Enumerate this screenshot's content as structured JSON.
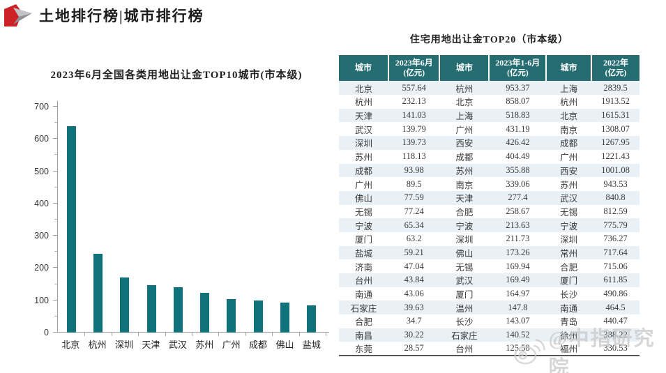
{
  "header": {
    "title": "土地排行榜|城市排行榜"
  },
  "colors": {
    "bar_teal": "#10737c",
    "table_header_teal": "#256d71",
    "row_stripe": "#e9f0f6",
    "logo_red": "#cc2127",
    "logo_gray_light": "#c3c3c6",
    "logo_gray_dark": "#8f9094",
    "watermark_gray": "#c9c9c9",
    "table_bottom_line": "#555555"
  },
  "chart_data": {
    "type": "bar",
    "title": "2023年6月全国各类用地出让金TOP10城市(市本级)",
    "categories": [
      "北京",
      "杭州",
      "深圳",
      "天津",
      "武汉",
      "苏州",
      "广州",
      "成都",
      "佛山",
      "盐城"
    ],
    "values": [
      640,
      245,
      171,
      147,
      141,
      123,
      104,
      99,
      93,
      85
    ],
    "xlabel": "",
    "ylabel": "",
    "ylim": [
      0,
      700
    ],
    "yticks": [
      0,
      100,
      200,
      300,
      400,
      500,
      600,
      700
    ],
    "ytick_minor_interval": 50,
    "grid": false,
    "legend": false,
    "bar_color": "#10737c"
  },
  "table": {
    "title": "住宅用地出让金TOP20（市本级）",
    "columns": [
      {
        "label": "城市",
        "sub": ""
      },
      {
        "label": "2023年6月",
        "sub": "(亿元)"
      },
      {
        "label": "城市",
        "sub": ""
      },
      {
        "label": "2023年1-6月",
        "sub": "(亿元)"
      },
      {
        "label": "城市",
        "sub": ""
      },
      {
        "label": "2022年",
        "sub": "(亿元)"
      }
    ],
    "rows": [
      [
        "北京",
        "557.64",
        "杭州",
        "953.37",
        "上海",
        "2839.5"
      ],
      [
        "杭州",
        "232.13",
        "北京",
        "858.07",
        "杭州",
        "1913.52"
      ],
      [
        "天津",
        "141.03",
        "上海",
        "518.83",
        "北京",
        "1615.31"
      ],
      [
        "武汉",
        "139.79",
        "广州",
        "431.19",
        "南京",
        "1308.07"
      ],
      [
        "深圳",
        "139.73",
        "西安",
        "426.42",
        "成都",
        "1267.95"
      ],
      [
        "苏州",
        "118.13",
        "成都",
        "404.49",
        "广州",
        "1221.43"
      ],
      [
        "成都",
        "93.98",
        "苏州",
        "355.88",
        "西安",
        "1001.08"
      ],
      [
        "广州",
        "89.5",
        "南京",
        "339.06",
        "苏州",
        "943.53"
      ],
      [
        "佛山",
        "77.59",
        "天津",
        "277.4",
        "武汉",
        "840.8"
      ],
      [
        "无锡",
        "77.24",
        "合肥",
        "258.67",
        "无锡",
        "812.59"
      ],
      [
        "宁波",
        "65.34",
        "宁波",
        "213.63",
        "宁波",
        "775.79"
      ],
      [
        "厦门",
        "63.2",
        "深圳",
        "211.73",
        "深圳",
        "736.27"
      ],
      [
        "盐城",
        "59.21",
        "佛山",
        "173.26",
        "常州",
        "717.64"
      ],
      [
        "济南",
        "47.04",
        "无锡",
        "169.94",
        "合肥",
        "715.06"
      ],
      [
        "台州",
        "43.84",
        "武汉",
        "169.49",
        "厦门",
        "611.85"
      ],
      [
        "南通",
        "43.06",
        "厦门",
        "164.97",
        "长沙",
        "490.86"
      ],
      [
        "石家庄",
        "39.63",
        "温州",
        "147.8",
        "南通",
        "464.5"
      ],
      [
        "合肥",
        "34.7",
        "长沙",
        "143.07",
        "青岛",
        "440.47"
      ],
      [
        "南昌",
        "30.22",
        "石家庄",
        "140.52",
        "徐州",
        "388.22"
      ],
      [
        "东莞",
        "28.57",
        "台州",
        "125.58",
        "福州",
        "330.53"
      ]
    ]
  },
  "watermark": {
    "text": "@中指研究院",
    "icon": "weibo-icon"
  }
}
